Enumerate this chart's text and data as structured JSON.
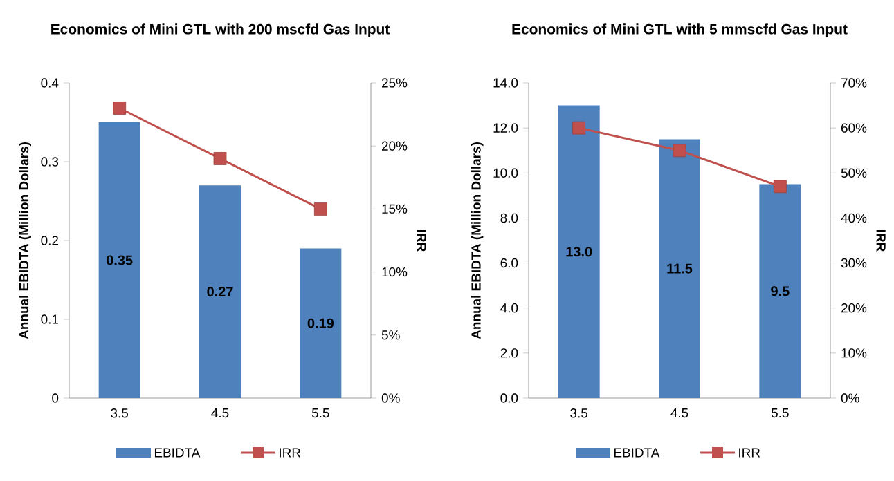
{
  "chart_data": [
    {
      "type": "bar",
      "title": "Economics of Mini GTL with 200 mscfd Gas Input",
      "ylabel": "Annual EBIDTA (Million Dollars)",
      "y2label": "IRR",
      "categories": [
        "3.5",
        "4.5",
        "5.5"
      ],
      "ylim": [
        0,
        0.4
      ],
      "yticks": [
        {
          "value": 0,
          "label": "0"
        },
        0.1,
        0.2,
        0.3,
        0.4
      ],
      "y2lim": [
        0,
        25
      ],
      "y2ticks": [
        {
          "value": 0,
          "label": "0%"
        },
        {
          "value": 5,
          "label": "5%"
        },
        {
          "value": 10,
          "label": "10%"
        },
        {
          "value": 15,
          "label": "15%"
        },
        {
          "value": 20,
          "label": "20%"
        },
        {
          "value": 25,
          "label": "25%"
        }
      ],
      "legend": "bottom",
      "series": [
        {
          "name": "EBIDTA",
          "color": "#4f81bd",
          "values": [
            0.35,
            0.27,
            0.19
          ],
          "value_labels": [
            "0.35",
            "0.27",
            "0.19"
          ]
        },
        {
          "name": "IRR",
          "type": "line",
          "axis": "y2",
          "color": "#c0504d",
          "marker": "square",
          "values": [
            23,
            19,
            15
          ]
        }
      ]
    },
    {
      "type": "bar",
      "title": "Economics of Mini GTL with 5 mmscfd Gas Input",
      "ylabel": "Annual EBIDTA (Million Dollars)",
      "y2label": "IRR",
      "categories": [
        "3.5",
        "4.5",
        "5.5"
      ],
      "ylim": [
        0,
        14
      ],
      "yticks": [
        {
          "value": 0,
          "label": "0.0"
        },
        {
          "value": 2,
          "label": "2.0"
        },
        {
          "value": 4,
          "label": "4.0"
        },
        {
          "value": 6,
          "label": "6.0"
        },
        {
          "value": 8,
          "label": "8.0"
        },
        {
          "value": 10,
          "label": "10.0"
        },
        {
          "value": 12,
          "label": "12.0"
        },
        {
          "value": 14,
          "label": "14.0"
        }
      ],
      "y2lim": [
        0,
        70
      ],
      "y2ticks": [
        {
          "value": 0,
          "label": "0%"
        },
        {
          "value": 10,
          "label": "10%"
        },
        {
          "value": 20,
          "label": "20%"
        },
        {
          "value": 30,
          "label": "30%"
        },
        {
          "value": 40,
          "label": "40%"
        },
        {
          "value": 50,
          "label": "50%"
        },
        {
          "value": 60,
          "label": "60%"
        },
        {
          "value": 70,
          "label": "70%"
        }
      ],
      "legend": "bottom",
      "series": [
        {
          "name": "EBIDTA",
          "color": "#4f81bd",
          "values": [
            13.0,
            11.5,
            9.5
          ],
          "value_labels": [
            "13.0",
            "11.5",
            "9.5"
          ]
        },
        {
          "name": "IRR",
          "type": "line",
          "axis": "y2",
          "color": "#c0504d",
          "marker": "square",
          "values": [
            60,
            55,
            47
          ]
        }
      ]
    }
  ]
}
